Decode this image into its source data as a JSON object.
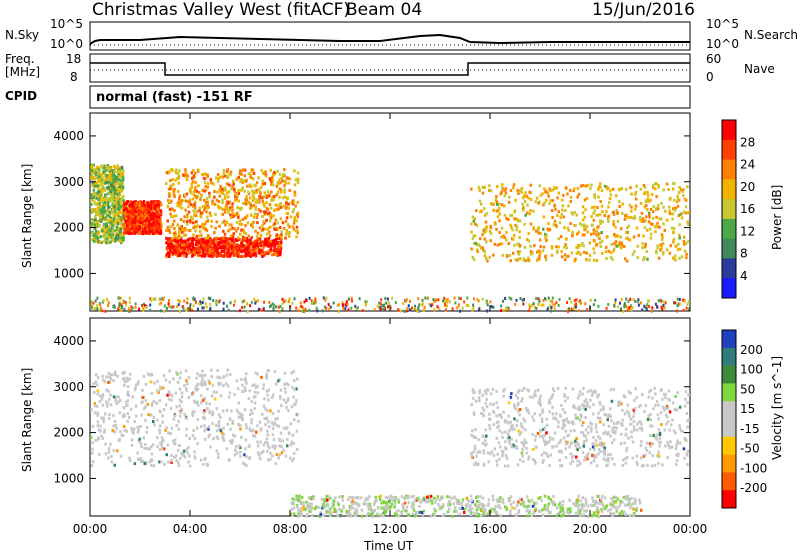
{
  "header": {
    "title": "Christmas Valley West (fitACF)",
    "beam": "Beam 04",
    "date": "15/Jun/2016"
  },
  "noise_panel": {
    "left_label": "N.Sky",
    "left_ticks": [
      "10^5",
      "10^0"
    ],
    "right_ticks": [
      "10^5",
      "10^0"
    ],
    "right_label": "N.Search"
  },
  "freq_panel": {
    "left_label_1": "Freq.",
    "left_label_2": "[MHz]",
    "left_ticks": [
      "18",
      "8"
    ],
    "right_ticks": [
      "60",
      "0"
    ],
    "right_label": "Nave"
  },
  "cpid_panel": {
    "label": "CPID",
    "text": "normal (fast) -151 RF"
  },
  "colors": {
    "power_scale": [
      "#1a1aff",
      "#2a3d9a",
      "#3f8a5a",
      "#4aa84a",
      "#c8c832",
      "#f0b400",
      "#ff8000",
      "#ff4000",
      "#ff0000"
    ],
    "velocity_scale": [
      "#ff0000",
      "#ff5a00",
      "#ff9a00",
      "#ffc800",
      "#c8c8c8",
      "#c8c8c8",
      "#7fd63f",
      "#3c8a3c",
      "#2e7d7a",
      "#2040c0"
    ]
  },
  "chart_data": [
    {
      "type": "heatmap",
      "panel": "power",
      "ylabel": "Slant Range [km]",
      "yticks": [
        "1000",
        "2000",
        "3000",
        "4000"
      ],
      "colorbar_label": "Power [dB]",
      "colorbar_ticks": [
        "4",
        "8",
        "12",
        "16",
        "20",
        "24",
        "28"
      ],
      "xlim_hours": [
        0,
        24
      ],
      "ylim_km": [
        180,
        4500
      ],
      "regions": [
        {
          "t0": 0.0,
          "t1": 1.3,
          "r0": 1700,
          "r1": 3400,
          "value": 14
        },
        {
          "t0": 1.3,
          "t1": 2.8,
          "r0": 1900,
          "r1": 2600,
          "value": 26
        },
        {
          "t0": 3.0,
          "t1": 7.6,
          "r0": 1400,
          "r1": 1800,
          "value": 27
        },
        {
          "t0": 3.0,
          "t1": 8.3,
          "r0": 1800,
          "r1": 3300,
          "value": 20
        },
        {
          "t0": 15.2,
          "t1": 23.9,
          "r0": 1300,
          "r1": 3000,
          "value": 18
        }
      ]
    },
    {
      "type": "heatmap",
      "panel": "velocity",
      "ylabel": "Slant Range [km]",
      "yticks": [
        "1000",
        "2000",
        "3000",
        "4000"
      ],
      "colorbar_label": "Velocity [m s^-1]",
      "colorbar_ticks": [
        "200",
        "100",
        "50",
        "15",
        "-15",
        "-50",
        "-100",
        "-200"
      ],
      "xlabel": "Time UT",
      "xticks": [
        "00:00",
        "04:00",
        "08:00",
        "12:00",
        "16:00",
        "20:00",
        "00:00"
      ],
      "xlim_hours": [
        0,
        24
      ],
      "ylim_km": [
        180,
        4500
      ],
      "regions": [
        {
          "t0": 0.0,
          "t1": 8.3,
          "r0": 1300,
          "r1": 3400,
          "value": 0
        },
        {
          "t0": 15.2,
          "t1": 23.9,
          "r0": 1300,
          "r1": 3000,
          "value": 0
        },
        {
          "t0": 8.0,
          "t1": 22.0,
          "r0": 200,
          "r1": 650,
          "value": 40
        }
      ]
    }
  ]
}
